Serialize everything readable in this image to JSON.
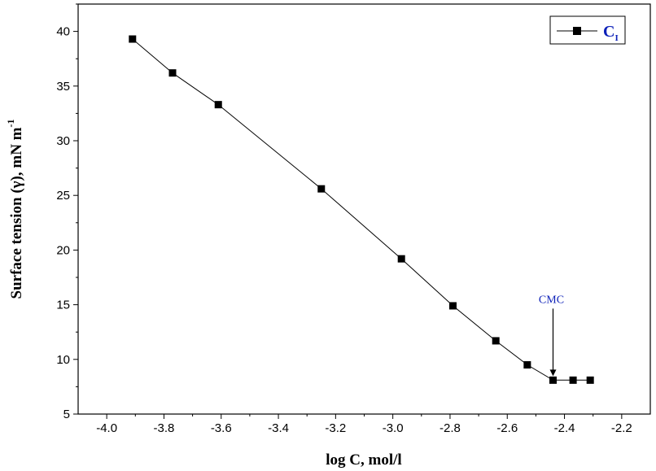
{
  "chart_data": {
    "type": "line",
    "xlabel": "log C, mol/l",
    "ylabel": "Surface tension (γ), mN m",
    "ylabel_superscript": "-1",
    "xlim": [
      -4.1,
      -2.1
    ],
    "ylim": [
      5,
      42.5
    ],
    "x_ticks": [
      -4.0,
      -3.8,
      -3.6,
      -3.4,
      -3.2,
      -3.0,
      -2.8,
      -2.6,
      -2.4,
      -2.2
    ],
    "x_tick_labels": [
      "-4.0",
      "-3.8",
      "-3.6",
      "-3.4",
      "-3.2",
      "-3.0",
      "-2.8",
      "-2.6",
      "-2.4",
      "-2.2"
    ],
    "y_ticks": [
      5,
      10,
      15,
      20,
      25,
      30,
      35,
      40
    ],
    "y_tick_labels": [
      "5",
      "10",
      "15",
      "20",
      "25",
      "30",
      "35",
      "40"
    ],
    "grid": false,
    "legend_position": "top-right",
    "series": [
      {
        "name": "C",
        "name_subscript": "I",
        "marker": "square",
        "color": "#000000",
        "x": [
          -3.91,
          -3.77,
          -3.61,
          -3.25,
          -2.97,
          -2.79,
          -2.64,
          -2.53,
          -2.44,
          -2.37,
          -2.31
        ],
        "y": [
          39.3,
          36.2,
          33.3,
          25.6,
          19.2,
          14.9,
          11.7,
          9.5,
          8.1,
          8.1,
          8.1
        ]
      }
    ],
    "annotations": [
      {
        "text": "CMC",
        "x": -2.44,
        "y": 8.1,
        "color": "#0b1fb8"
      }
    ]
  }
}
